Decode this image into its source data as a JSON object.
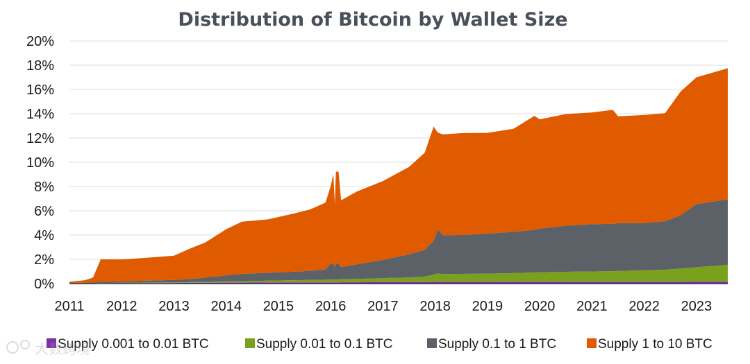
{
  "chart_data": {
    "type": "area",
    "stacked": true,
    "title": "Distribution of Bitcoin by Wallet Size",
    "xlabel": "",
    "ylabel": "",
    "x_ticks": [
      "2011",
      "2012",
      "2013",
      "2014",
      "2015",
      "2016",
      "2017",
      "2018",
      "2019",
      "2020",
      "2021",
      "2022",
      "2023"
    ],
    "y_ticks": [
      "0%",
      "2%",
      "4%",
      "6%",
      "8%",
      "10%",
      "12%",
      "14%",
      "16%",
      "18%",
      "20%"
    ],
    "ylim": [
      0,
      20
    ],
    "xlim": [
      2011.0,
      2023.6
    ],
    "grid": true,
    "legend_position": "bottom",
    "x": [
      2011.0,
      2011.3,
      2011.45,
      2011.6,
      2012.0,
      2012.5,
      2013.0,
      2013.3,
      2013.6,
      2014.0,
      2014.3,
      2014.8,
      2015.3,
      2015.6,
      2015.9,
      2016.0,
      2016.05,
      2016.08,
      2016.1,
      2016.15,
      2016.2,
      2016.5,
      2017.0,
      2017.5,
      2017.8,
      2017.97,
      2018.05,
      2018.15,
      2018.5,
      2019.0,
      2019.5,
      2019.9,
      2020.0,
      2020.5,
      2021.0,
      2021.4,
      2021.5,
      2022.0,
      2022.4,
      2022.7,
      2023.0,
      2023.6
    ],
    "series": [
      {
        "name": "Supply 0.001 to 0.01 BTC",
        "color": "#7b2fa8",
        "values": [
          0,
          0,
          0,
          0.02,
          0.03,
          0.04,
          0.05,
          0.06,
          0.07,
          0.08,
          0.08,
          0.09,
          0.1,
          0.1,
          0.1,
          0.1,
          0.1,
          0.1,
          0.1,
          0.1,
          0.11,
          0.11,
          0.12,
          0.13,
          0.13,
          0.14,
          0.14,
          0.14,
          0.14,
          0.14,
          0.14,
          0.14,
          0.14,
          0.14,
          0.14,
          0.14,
          0.14,
          0.14,
          0.14,
          0.14,
          0.15,
          0.15
        ]
      },
      {
        "name": "Supply 0.01 to 0.1 BTC",
        "color": "#7aa11e",
        "values": [
          0,
          0,
          0,
          0.03,
          0.04,
          0.05,
          0.05,
          0.06,
          0.07,
          0.1,
          0.12,
          0.15,
          0.18,
          0.2,
          0.22,
          0.23,
          0.23,
          0.23,
          0.23,
          0.23,
          0.25,
          0.28,
          0.33,
          0.38,
          0.45,
          0.6,
          0.7,
          0.65,
          0.66,
          0.68,
          0.72,
          0.78,
          0.8,
          0.83,
          0.86,
          0.88,
          0.9,
          0.95,
          1.0,
          1.1,
          1.2,
          1.4
        ]
      },
      {
        "name": "Supply 0.1 to 1 BTC",
        "color": "#5c6067",
        "values": [
          0.05,
          0.08,
          0.1,
          0.1,
          0.12,
          0.15,
          0.2,
          0.25,
          0.35,
          0.5,
          0.6,
          0.65,
          0.7,
          0.75,
          0.85,
          1.3,
          1.3,
          1.0,
          1.3,
          1.3,
          1.0,
          1.2,
          1.5,
          1.9,
          2.2,
          2.8,
          3.6,
          3.2,
          3.2,
          3.3,
          3.4,
          3.5,
          3.6,
          3.8,
          3.9,
          3.9,
          3.95,
          3.9,
          4.0,
          4.4,
          5.2,
          5.4
        ]
      },
      {
        "name": "Supply 1 to 10 BTC",
        "color": "#e05a00",
        "values": [
          0.1,
          0.2,
          0.4,
          1.85,
          1.8,
          1.9,
          2.0,
          2.5,
          2.9,
          3.8,
          4.3,
          4.4,
          4.8,
          5.05,
          5.5,
          6.4,
          7.4,
          5.2,
          7.6,
          7.6,
          5.5,
          6.0,
          6.5,
          7.2,
          8.0,
          9.4,
          8.0,
          8.3,
          8.4,
          8.3,
          8.5,
          9.4,
          9.0,
          9.2,
          9.2,
          9.4,
          8.8,
          8.9,
          8.9,
          10.2,
          10.45,
          10.8
        ]
      }
    ]
  },
  "watermark": "大数跨境"
}
